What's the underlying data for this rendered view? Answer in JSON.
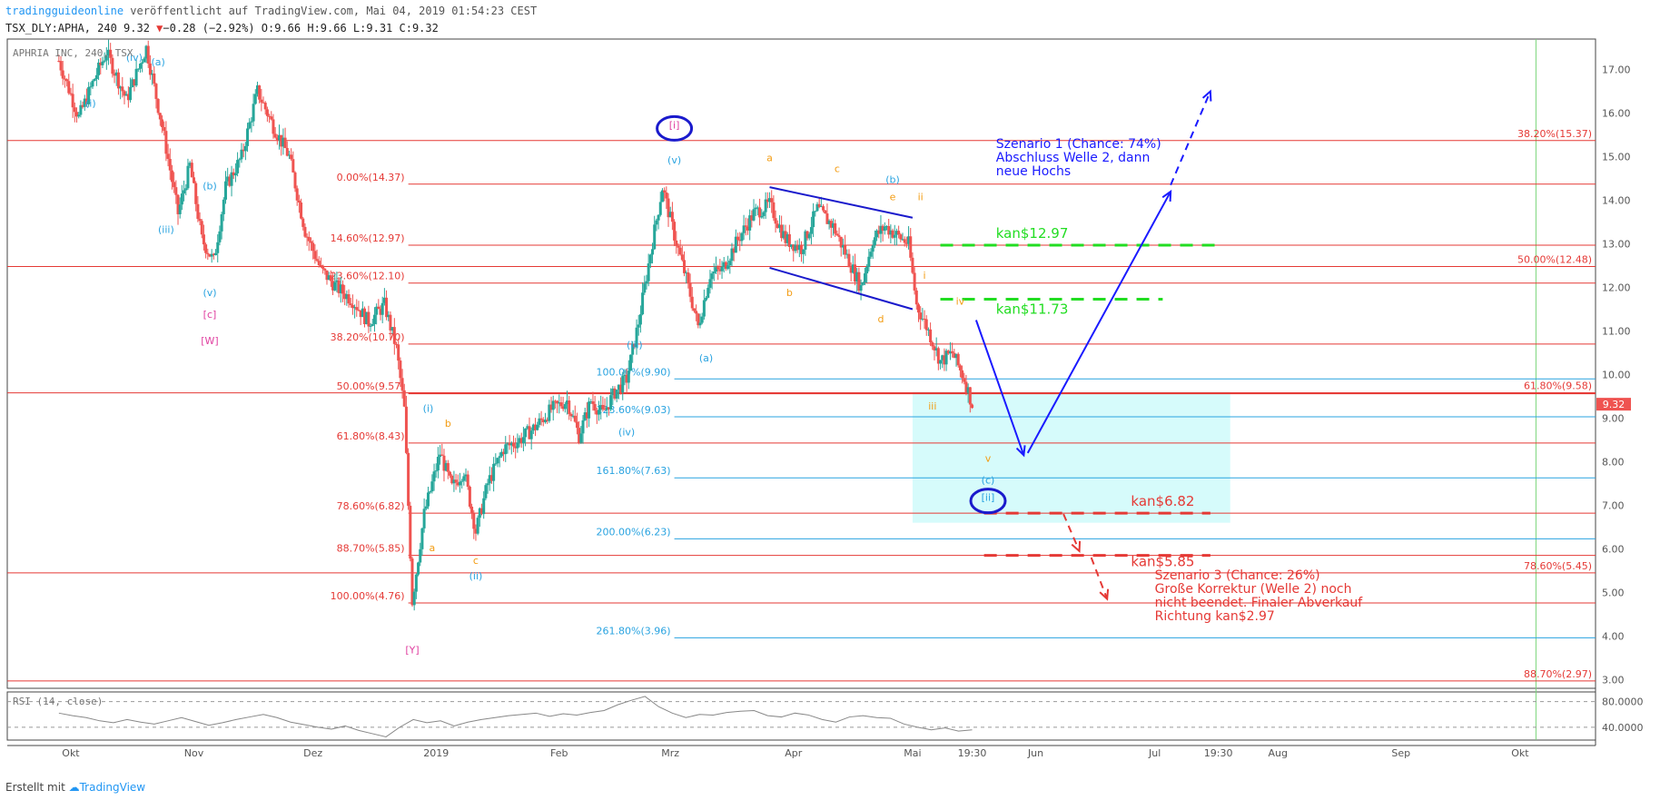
{
  "header": {
    "source_line": "tradingguideonline veröffentlicht auf TradingView.com, Mai 04, 2019 01:54:23 CEST",
    "source_brand": "tradingguideonline",
    "source_rest": " veröffentlicht auf TradingView.com, Mai 04, 2019 01:54:23 CEST",
    "symbol_prefix": "TSX_DLY:APHA, 240 9.32 ",
    "change_arrow": "▼",
    "change_text": "−0.28 (−2.92%)",
    "ohlc_text": " O:9.66 H:9.66 L:9.31 C:9.32"
  },
  "footer": {
    "created_with": "Erstellt mit",
    "brand": "TradingView"
  },
  "chart_data": {
    "type": "candlestick",
    "instrument_label": "APHRIA INC, 240, TSX",
    "last_price_label": "9.32",
    "y_ticks": [
      "17.00",
      "16.00",
      "15.00",
      "14.00",
      "13.00",
      "12.00",
      "11.00",
      "10.00",
      "9.00",
      "8.00",
      "7.00",
      "6.00",
      "5.00",
      "4.00",
      "3.00"
    ],
    "y_range": [
      2.8,
      17.7
    ],
    "x_labels": [
      {
        "label": "Okt",
        "date": "2018-10-01"
      },
      {
        "label": "Nov",
        "date": "2018-11-01"
      },
      {
        "label": "Dez",
        "date": "2018-12-01"
      },
      {
        "label": "2019",
        "date": "2019-01-01"
      },
      {
        "label": "Feb",
        "date": "2019-02-01"
      },
      {
        "label": "Mrz",
        "date": "2019-03-01"
      },
      {
        "label": "Apr",
        "date": "2019-04-01"
      },
      {
        "label": "Mai",
        "date": "2019-05-01"
      },
      {
        "label": "19:30",
        "date": "2019-05-16"
      },
      {
        "label": "Jun",
        "date": "2019-06-01"
      },
      {
        "label": "Jul",
        "date": "2019-07-01"
      },
      {
        "label": "19:30",
        "date": "2019-07-17"
      },
      {
        "label": "Aug",
        "date": "2019-08-01"
      },
      {
        "label": "Sep",
        "date": "2019-09-01"
      },
      {
        "label": "Okt",
        "date": "2019-10-01"
      }
    ],
    "price_path": [
      {
        "date": "2018-09-28",
        "price": 17.2
      },
      {
        "date": "2018-10-03",
        "price": 15.9
      },
      {
        "date": "2018-10-07",
        "price": 16.8
      },
      {
        "date": "2018-10-10",
        "price": 17.4
      },
      {
        "date": "2018-10-15",
        "price": 16.3
      },
      {
        "date": "2018-10-20",
        "price": 17.5
      },
      {
        "date": "2018-10-24",
        "price": 15.7
      },
      {
        "date": "2018-10-28",
        "price": 13.7
      },
      {
        "date": "2018-10-31",
        "price": 14.8
      },
      {
        "date": "2018-11-03",
        "price": 13.1
      },
      {
        "date": "2018-11-06",
        "price": 12.6
      },
      {
        "date": "2018-11-09",
        "price": 14.3
      },
      {
        "date": "2018-11-13",
        "price": 15.0
      },
      {
        "date": "2018-11-17",
        "price": 16.5
      },
      {
        "date": "2018-11-21",
        "price": 15.7
      },
      {
        "date": "2018-11-25",
        "price": 15.0
      },
      {
        "date": "2018-11-29",
        "price": 13.3
      },
      {
        "date": "2018-12-03",
        "price": 12.4
      },
      {
        "date": "2018-12-07",
        "price": 12.0
      },
      {
        "date": "2018-12-11",
        "price": 11.7
      },
      {
        "date": "2018-12-15",
        "price": 11.2
      },
      {
        "date": "2018-12-19",
        "price": 11.6
      },
      {
        "date": "2018-12-22",
        "price": 10.6
      },
      {
        "date": "2018-12-24",
        "price": 9.2
      },
      {
        "date": "2018-12-26",
        "price": 4.8
      },
      {
        "date": "2018-12-29",
        "price": 6.8
      },
      {
        "date": "2019-01-02",
        "price": 8.2
      },
      {
        "date": "2019-01-05",
        "price": 7.4
      },
      {
        "date": "2019-01-08",
        "price": 7.8
      },
      {
        "date": "2019-01-11",
        "price": 6.4
      },
      {
        "date": "2019-01-14",
        "price": 7.5
      },
      {
        "date": "2019-01-18",
        "price": 8.3
      },
      {
        "date": "2019-01-22",
        "price": 8.5
      },
      {
        "date": "2019-01-26",
        "price": 8.8
      },
      {
        "date": "2019-01-30",
        "price": 9.2
      },
      {
        "date": "2019-02-03",
        "price": 9.4
      },
      {
        "date": "2019-02-06",
        "price": 8.6
      },
      {
        "date": "2019-02-09",
        "price": 9.4
      },
      {
        "date": "2019-02-12",
        "price": 9.1
      },
      {
        "date": "2019-02-15",
        "price": 9.6
      },
      {
        "date": "2019-02-18",
        "price": 9.9
      },
      {
        "date": "2019-02-21",
        "price": 11.2
      },
      {
        "date": "2019-02-24",
        "price": 12.8
      },
      {
        "date": "2019-02-27",
        "price": 14.3
      },
      {
        "date": "2019-03-02",
        "price": 13.2
      },
      {
        "date": "2019-03-05",
        "price": 12.2
      },
      {
        "date": "2019-03-08",
        "price": 11.1
      },
      {
        "date": "2019-03-11",
        "price": 12.3
      },
      {
        "date": "2019-03-14",
        "price": 12.4
      },
      {
        "date": "2019-03-18",
        "price": 13.1
      },
      {
        "date": "2019-03-22",
        "price": 13.7
      },
      {
        "date": "2019-03-26",
        "price": 13.9
      },
      {
        "date": "2019-03-30",
        "price": 13.1
      },
      {
        "date": "2019-04-03",
        "price": 12.9
      },
      {
        "date": "2019-04-07",
        "price": 13.8
      },
      {
        "date": "2019-04-11",
        "price": 13.4
      },
      {
        "date": "2019-04-15",
        "price": 12.6
      },
      {
        "date": "2019-04-18",
        "price": 12.0
      },
      {
        "date": "2019-04-21",
        "price": 13.1
      },
      {
        "date": "2019-04-24",
        "price": 13.4
      },
      {
        "date": "2019-04-27",
        "price": 13.2
      },
      {
        "date": "2019-04-30",
        "price": 13.0
      },
      {
        "date": "2019-05-02",
        "price": 11.6
      },
      {
        "date": "2019-05-05",
        "price": 11.0
      },
      {
        "date": "2019-05-08",
        "price": 10.3
      },
      {
        "date": "2019-05-11",
        "price": 10.5
      },
      {
        "date": "2019-05-14",
        "price": 9.9
      },
      {
        "date": "2019-05-16",
        "price": 9.32
      }
    ],
    "fib_levels_red": [
      {
        "label": "0.00%(14.37)",
        "value": 14.37,
        "side": "left",
        "extend": "right"
      },
      {
        "label": "14.60%(12.97)",
        "value": 12.97,
        "side": "left",
        "extend": "right"
      },
      {
        "label": "23.60%(12.10)",
        "value": 12.1,
        "side": "left",
        "extend": "right"
      },
      {
        "label": "38.20%(10.70)",
        "value": 10.7,
        "side": "left",
        "extend": "right"
      },
      {
        "label": "50.00%(9.57)",
        "value": 9.57,
        "side": "left",
        "extend": "right"
      },
      {
        "label": "61.80%(8.43)",
        "value": 8.43,
        "side": "left",
        "extend": "right"
      },
      {
        "label": "78.60%(6.82)",
        "value": 6.82,
        "side": "left",
        "extend": "right"
      },
      {
        "label": "88.70%(5.85)",
        "value": 5.85,
        "side": "left",
        "extend": "right"
      },
      {
        "label": "100.00%(4.76)",
        "value": 4.76,
        "side": "left",
        "extend": "right"
      },
      {
        "label": "38.20%(15.37)",
        "value": 15.37,
        "side": "right",
        "extend": "full"
      },
      {
        "label": "50.00%(12.48)",
        "value": 12.48,
        "side": "right",
        "extend": "full"
      },
      {
        "label": "61.80%(9.58)",
        "value": 9.58,
        "side": "right",
        "extend": "full"
      },
      {
        "label": "78.60%(5.45)",
        "value": 5.45,
        "side": "right",
        "extend": "full"
      },
      {
        "label": "88.70%(2.97)",
        "value": 2.97,
        "side": "right",
        "extend": "full"
      }
    ],
    "fib_levels_blue": [
      {
        "label": "100.00%(9.90)",
        "value": 9.9
      },
      {
        "label": "123.60%(9.03)",
        "value": 9.03
      },
      {
        "label": "161.80%(7.63)",
        "value": 7.63
      },
      {
        "label": "200.00%(6.23)",
        "value": 6.23
      },
      {
        "label": "261.80%(3.96)",
        "value": 3.96
      }
    ],
    "target_lines": [
      {
        "label": "kan$12.97",
        "value": 12.97,
        "color": "#22dd22"
      },
      {
        "label": "kan$11.73",
        "value": 11.73,
        "color": "#22dd22"
      },
      {
        "label": "kan$6.82",
        "value": 6.82,
        "color": "#e53935"
      },
      {
        "label": "kan$5.85",
        "value": 5.85,
        "color": "#e53935"
      }
    ],
    "zone": {
      "from": "2019-05-01",
      "to": "2019-07-20",
      "low": 6.6,
      "high": 9.6,
      "color": "#d6fbfb"
    },
    "wave_labels": [
      {
        "text": "(i)",
        "date": "2018-10-06",
        "price": 16.15,
        "color": "#29a3e0"
      },
      {
        "text": "(iv)",
        "date": "2018-10-17",
        "price": 17.2,
        "color": "#29a3e0"
      },
      {
        "text": "(a)",
        "date": "2018-10-23",
        "price": 17.1,
        "color": "#29a3e0"
      },
      {
        "text": "(b)",
        "date": "2018-11-05",
        "price": 14.25,
        "color": "#29a3e0"
      },
      {
        "text": "(iii)",
        "date": "2018-10-25",
        "price": 13.25,
        "color": "#29a3e0"
      },
      {
        "text": "(v)",
        "date": "2018-11-05",
        "price": 11.8,
        "color": "#29a3e0"
      },
      {
        "text": "[c]",
        "date": "2018-11-05",
        "price": 11.3,
        "color": "#e040a0"
      },
      {
        "text": "[W]",
        "date": "2018-11-05",
        "price": 10.7,
        "color": "#e040a0"
      },
      {
        "text": "[i]",
        "date": "2019-03-02",
        "price": 15.65,
        "color": "#e040a0"
      },
      {
        "text": "(v)",
        "date": "2019-03-02",
        "price": 14.85,
        "color": "#29a3e0"
      },
      {
        "text": "(iii)",
        "date": "2019-02-20",
        "price": 10.6,
        "color": "#29a3e0"
      },
      {
        "text": "(a)",
        "date": "2019-03-10",
        "price": 10.3,
        "color": "#29a3e0"
      },
      {
        "text": "(i)",
        "date": "2018-12-30",
        "price": 9.15,
        "color": "#29a3e0"
      },
      {
        "text": "(iv)",
        "date": "2019-02-18",
        "price": 8.6,
        "color": "#29a3e0"
      },
      {
        "text": "(ii)",
        "date": "2019-01-11",
        "price": 5.3,
        "color": "#29a3e0"
      },
      {
        "text": "[Y]",
        "date": "2018-12-26",
        "price": 3.6,
        "color": "#e040a0"
      },
      {
        "text": "b",
        "date": "2019-01-04",
        "price": 8.8,
        "color": "#f39c12"
      },
      {
        "text": "a",
        "date": "2018-12-31",
        "price": 5.95,
        "color": "#f39c12"
      },
      {
        "text": "c",
        "date": "2019-01-11",
        "price": 5.65,
        "color": "#f39c12"
      },
      {
        "text": "a",
        "date": "2019-03-26",
        "price": 14.9,
        "color": "#f39c12"
      },
      {
        "text": "c",
        "date": "2019-04-12",
        "price": 14.65,
        "color": "#f39c12"
      },
      {
        "text": "(b)",
        "date": "2019-04-26",
        "price": 14.4,
        "color": "#29a3e0"
      },
      {
        "text": "e",
        "date": "2019-04-26",
        "price": 14.0,
        "color": "#f39c12"
      },
      {
        "text": "ii",
        "date": "2019-05-03",
        "price": 14.0,
        "color": "#f39c12"
      },
      {
        "text": "b",
        "date": "2019-03-31",
        "price": 11.8,
        "color": "#f39c12"
      },
      {
        "text": "d",
        "date": "2019-04-23",
        "price": 11.2,
        "color": "#f39c12"
      },
      {
        "text": "i",
        "date": "2019-05-04",
        "price": 12.2,
        "color": "#f39c12"
      },
      {
        "text": "iv",
        "date": "2019-05-13",
        "price": 11.6,
        "color": "#f39c12"
      },
      {
        "text": "iii",
        "date": "2019-05-06",
        "price": 9.2,
        "color": "#f39c12"
      },
      {
        "text": "v",
        "date": "2019-05-20",
        "price": 8.0,
        "color": "#f39c12"
      },
      {
        "text": "(c)",
        "date": "2019-05-20",
        "price": 7.5,
        "color": "#29a3e0"
      },
      {
        "text": "[ii]",
        "date": "2019-05-20",
        "price": 7.1,
        "color": "#29a3e0"
      }
    ],
    "circles": [
      {
        "date": "2019-03-02",
        "price": 15.65
      },
      {
        "date": "2019-05-20",
        "price": 7.1
      }
    ],
    "annotations": [
      {
        "lines": [
          "Szenario 1 (Chance: 74%)",
          "Abschluss Welle 2, dann",
          "neue Hochs"
        ],
        "date": "2019-05-22",
        "price": 15.2,
        "color": "#1a1aff"
      },
      {
        "lines": [
          "Szenario 3 (Chance: 26%)",
          "Große Korrektur (Welle 2) noch",
          "nicht beendet. Finaler Abverkauf",
          "Richtung kan$2.97"
        ],
        "date": "2019-07-01",
        "price": 5.3,
        "color": "#e53935"
      }
    ],
    "channel_lines": [
      {
        "from": {
          "date": "2019-03-26",
          "price": 14.3
        },
        "to": {
          "date": "2019-05-01",
          "price": 13.6
        }
      },
      {
        "from": {
          "date": "2019-03-26",
          "price": 12.45
        },
        "to": {
          "date": "2019-05-01",
          "price": 11.5
        }
      }
    ],
    "arrows": [
      {
        "from": {
          "date": "2019-05-17",
          "price": 11.25
        },
        "to": {
          "date": "2019-05-29",
          "price": 8.15
        },
        "color": "#1a1aff",
        "dashed": false
      },
      {
        "from": {
          "date": "2019-05-30",
          "price": 8.2
        },
        "to": {
          "date": "2019-07-05",
          "price": 14.2
        },
        "color": "#1a1aff",
        "dashed": false
      },
      {
        "from": {
          "date": "2019-07-05",
          "price": 14.35
        },
        "to": {
          "date": "2019-07-15",
          "price": 16.5
        },
        "color": "#1a1aff",
        "dashed": true
      },
      {
        "from": {
          "date": "2019-06-08",
          "price": 6.8
        },
        "to": {
          "date": "2019-06-12",
          "price": 5.95
        },
        "color": "#e53935",
        "dashed": true
      },
      {
        "from": {
          "date": "2019-06-15",
          "price": 5.8
        },
        "to": {
          "date": "2019-06-19",
          "price": 4.85
        },
        "color": "#e53935",
        "dashed": true
      }
    ],
    "rsi": {
      "label": "RSI (14, close)",
      "ticks": [
        "80.0000",
        "40.0000"
      ],
      "range": [
        20,
        95
      ],
      "values": [
        62,
        58,
        55,
        50,
        47,
        52,
        48,
        45,
        50,
        55,
        49,
        43,
        47,
        52,
        56,
        60,
        55,
        48,
        44,
        40,
        37,
        42,
        35,
        30,
        25,
        40,
        52,
        47,
        50,
        42,
        48,
        52,
        55,
        58,
        60,
        62,
        57,
        61,
        59,
        63,
        66,
        75,
        82,
        88,
        72,
        62,
        55,
        60,
        59,
        63,
        65,
        66,
        58,
        56,
        62,
        59,
        52,
        48,
        56,
        58,
        55,
        54,
        45,
        40,
        36,
        39,
        34,
        36
      ]
    }
  }
}
